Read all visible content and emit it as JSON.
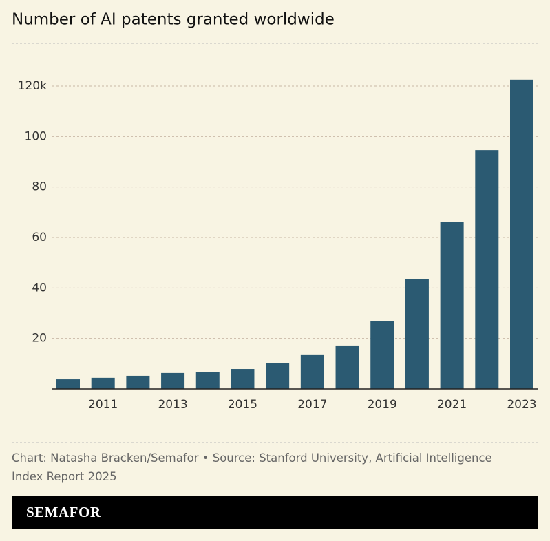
{
  "chart_data": {
    "type": "bar",
    "title": "Number of AI patents granted worldwide",
    "categories": [
      null,
      "2011",
      null,
      "2013",
      null,
      "2015",
      null,
      "2017",
      null,
      "2019",
      null,
      "2021",
      null,
      "2023"
    ],
    "values": [
      3.8,
      4.4,
      5.2,
      6.3,
      6.8,
      7.9,
      10.1,
      13.4,
      17.2,
      27.0,
      43.4,
      66.0,
      94.6,
      122.5
    ],
    "color": "#2b5a72",
    "ylim": [
      0,
      125
    ],
    "yticks": [
      20,
      40,
      60,
      80,
      100,
      {
        "value": 120,
        "label": "120k"
      }
    ],
    "grid": true,
    "source": "Chart: Natasha Bracken/Semafor • Source: Stanford University, Artificial Intelligence Index Report 2025",
    "brand": "SEMAFOR"
  }
}
